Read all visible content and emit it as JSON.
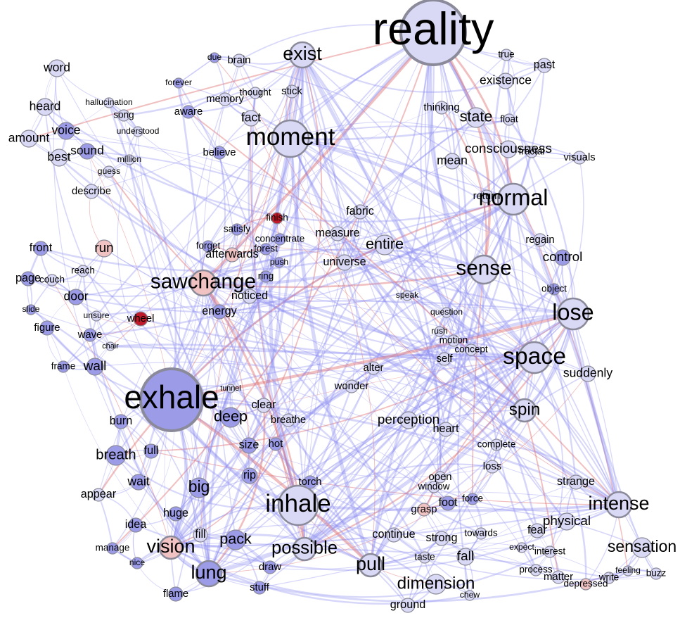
{
  "colors": {
    "node_light": "#d9d9f5",
    "node_mid": "#9b9be8",
    "node_dark": "#2020c8",
    "node_pink": "#f0c2c2",
    "node_red": "#c01a2a",
    "edge_blue": "#8c8cf0",
    "edge_red": "#e07070",
    "outline": "#8a8a9a"
  },
  "words": [
    {
      "t": "reality",
      "v": 48
    },
    {
      "t": "exhale",
      "v": 34
    },
    {
      "t": "inhale",
      "v": 26
    },
    {
      "t": "moment",
      "v": 26
    },
    {
      "t": "normal",
      "v": 24
    },
    {
      "t": "space",
      "v": 25
    },
    {
      "t": "lose",
      "v": 24
    },
    {
      "t": "sense",
      "v": 22
    },
    {
      "t": "exist",
      "v": 20
    },
    {
      "t": "sawchange",
      "v": 22
    },
    {
      "t": "lung",
      "v": 20
    },
    {
      "t": "vision",
      "v": 20
    },
    {
      "t": "pull",
      "v": 20
    },
    {
      "t": "intense",
      "v": 20
    },
    {
      "t": "possible",
      "v": 19
    },
    {
      "t": "dimension",
      "v": 18
    },
    {
      "t": "sensation",
      "v": 17
    },
    {
      "t": "big",
      "v": 17
    },
    {
      "t": "deep",
      "v": 16
    },
    {
      "t": "pack",
      "v": 16
    },
    {
      "t": "entire",
      "v": 16
    },
    {
      "t": "state",
      "v": 16
    },
    {
      "t": "consciousness",
      "v": 14
    },
    {
      "t": "spin",
      "v": 18
    },
    {
      "t": "breath",
      "v": 15
    },
    {
      "t": "word",
      "v": 13
    },
    {
      "t": "heard",
      "v": 13
    },
    {
      "t": "voice",
      "v": 13
    },
    {
      "t": "amount",
      "v": 13
    },
    {
      "t": "best",
      "v": 13
    },
    {
      "t": "sound",
      "v": 13
    },
    {
      "t": "describe",
      "v": 11
    },
    {
      "t": "front",
      "v": 12
    },
    {
      "t": "run",
      "v": 14
    },
    {
      "t": "page",
      "v": 12
    },
    {
      "t": "door",
      "v": 13
    },
    {
      "t": "wheel",
      "v": 11
    },
    {
      "t": "wall",
      "v": 14
    },
    {
      "t": "figure",
      "v": 11
    },
    {
      "t": "wave",
      "v": 11
    },
    {
      "t": "frame",
      "v": 10
    },
    {
      "t": "burn",
      "v": 12
    },
    {
      "t": "full",
      "v": 12
    },
    {
      "t": "wait",
      "v": 13
    },
    {
      "t": "appear",
      "v": 12
    },
    {
      "t": "idea",
      "v": 12
    },
    {
      "t": "manage",
      "v": 10
    },
    {
      "t": "nice",
      "v": 9
    },
    {
      "t": "flame",
      "v": 11
    },
    {
      "t": "huge",
      "v": 12
    },
    {
      "t": "fill",
      "v": 12
    },
    {
      "t": "stuff",
      "v": 11
    },
    {
      "t": "draw",
      "v": 11
    },
    {
      "t": "size",
      "v": 12
    },
    {
      "t": "hot",
      "v": 11
    },
    {
      "t": "rip",
      "v": 12
    },
    {
      "t": "torch",
      "v": 11
    },
    {
      "t": "clear",
      "v": 12
    },
    {
      "t": "breathe",
      "v": 11
    },
    {
      "t": "energy",
      "v": 12
    },
    {
      "t": "noticed",
      "v": 12
    },
    {
      "t": "afterwards",
      "v": 12
    },
    {
      "t": "forget",
      "v": 10
    },
    {
      "t": "satisfy",
      "v": 10
    },
    {
      "t": "finish",
      "v": 10
    },
    {
      "t": "concentrate",
      "v": 10
    },
    {
      "t": "forest",
      "v": 10
    },
    {
      "t": "ring",
      "v": 10
    },
    {
      "t": "push",
      "v": 9
    },
    {
      "t": "universe",
      "v": 12
    },
    {
      "t": "measure",
      "v": 12
    },
    {
      "t": "fabric",
      "v": 12
    },
    {
      "t": "alter",
      "v": 11
    },
    {
      "t": "wonder",
      "v": 11
    },
    {
      "t": "perception",
      "v": 14
    },
    {
      "t": "heart",
      "v": 12
    },
    {
      "t": "complete",
      "v": 10
    },
    {
      "t": "loss",
      "v": 11
    },
    {
      "t": "open",
      "v": 11
    },
    {
      "t": "window",
      "v": 10
    },
    {
      "t": "grasp",
      "v": 11
    },
    {
      "t": "foot",
      "v": 12
    },
    {
      "t": "force",
      "v": 10
    },
    {
      "t": "strong",
      "v": 12
    },
    {
      "t": "continue",
      "v": 12
    },
    {
      "t": "taste",
      "v": 10
    },
    {
      "t": "fall",
      "v": 14
    },
    {
      "t": "towards",
      "v": 10
    },
    {
      "t": "ground",
      "v": 12
    },
    {
      "t": "chew",
      "v": 9
    },
    {
      "t": "fear",
      "v": 12
    },
    {
      "t": "physical",
      "v": 14
    },
    {
      "t": "strange",
      "v": 12
    },
    {
      "t": "expect",
      "v": 9
    },
    {
      "t": "interest",
      "v": 10
    },
    {
      "t": "process",
      "v": 10
    },
    {
      "t": "matter",
      "v": 11
    },
    {
      "t": "depressed",
      "v": 10
    },
    {
      "t": "write",
      "v": 10
    },
    {
      "t": "feeling",
      "v": 9
    },
    {
      "t": "buzz",
      "v": 10
    },
    {
      "t": "suddenly",
      "v": 13
    },
    {
      "t": "control",
      "v": 14
    },
    {
      "t": "regain",
      "v": 11
    },
    {
      "t": "object",
      "v": 10
    },
    {
      "t": "mean",
      "v": 13
    },
    {
      "t": "return",
      "v": 11
    },
    {
      "t": "thinking",
      "v": 11
    },
    {
      "t": "existence",
      "v": 13
    },
    {
      "t": "true",
      "v": 10
    },
    {
      "t": "past",
      "v": 12
    },
    {
      "t": "visuals",
      "v": 11
    },
    {
      "t": "fractal",
      "v": 10
    },
    {
      "t": "float",
      "v": 10
    },
    {
      "t": "self",
      "v": 11
    },
    {
      "t": "concept",
      "v": 10
    },
    {
      "t": "motion",
      "v": 10
    },
    {
      "t": "question",
      "v": 9
    },
    {
      "t": "rush",
      "v": 9
    },
    {
      "t": "speak",
      "v": 9
    },
    {
      "t": "brain",
      "v": 11
    },
    {
      "t": "aware",
      "v": 11
    },
    {
      "t": "memory",
      "v": 11
    },
    {
      "t": "fact",
      "v": 13
    },
    {
      "t": "believe",
      "v": 11
    },
    {
      "t": "thought",
      "v": 10
    },
    {
      "t": "stick",
      "v": 11
    },
    {
      "t": "forever",
      "v": 9
    },
    {
      "t": "due",
      "v": 9
    },
    {
      "t": "song",
      "v": 10
    },
    {
      "t": "understood",
      "v": 9
    },
    {
      "t": "guess",
      "v": 9
    },
    {
      "t": "million",
      "v": 9
    },
    {
      "t": "hallucination",
      "v": 9
    },
    {
      "t": "reach",
      "v": 10
    },
    {
      "t": "couch",
      "v": 10
    },
    {
      "t": "slide",
      "v": 9
    },
    {
      "t": "unsure",
      "v": 9
    },
    {
      "t": "chair",
      "v": 8
    },
    {
      "t": "tunnel",
      "v": 8
    }
  ]
}
